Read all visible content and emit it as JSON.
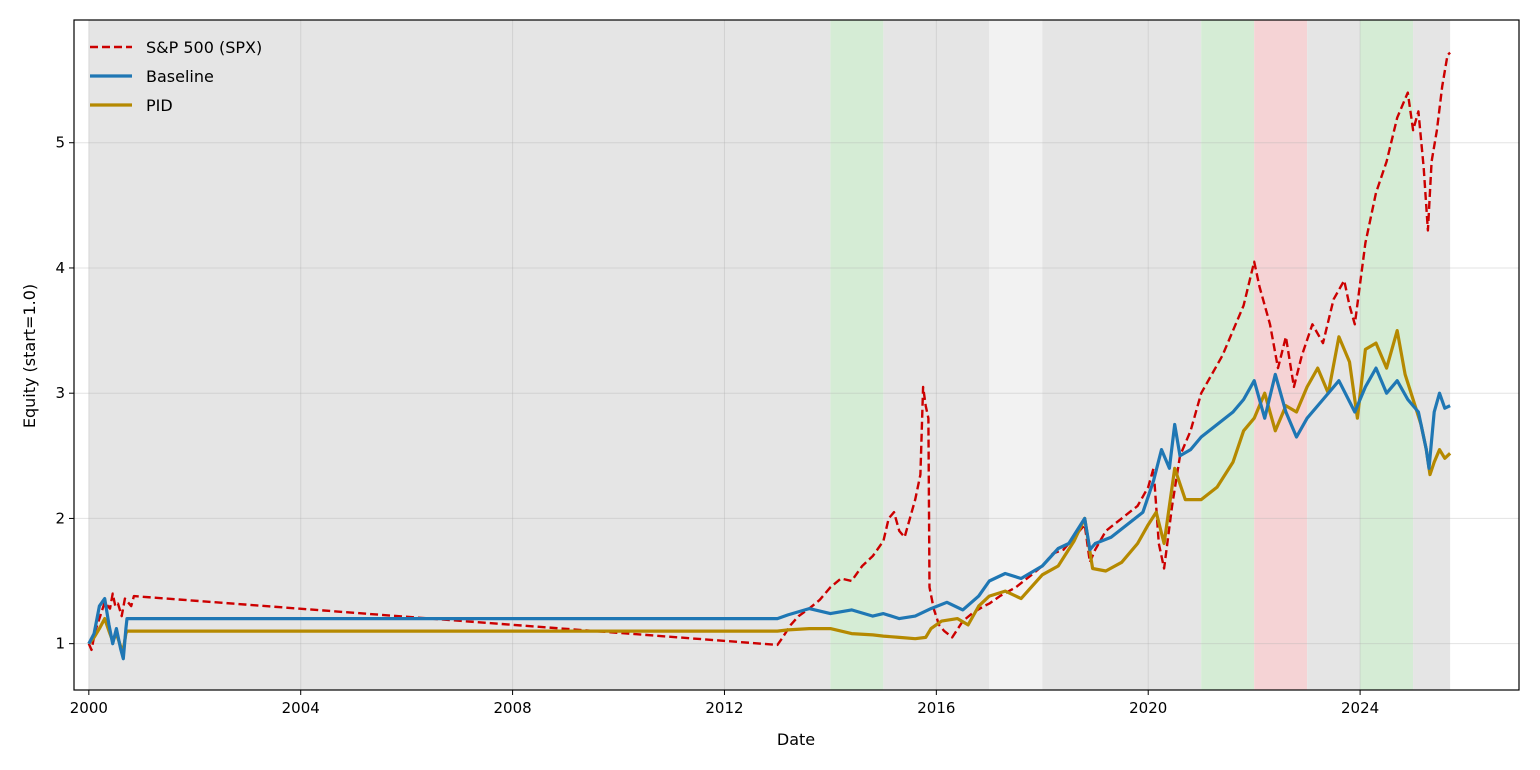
{
  "chart_data": {
    "type": "line",
    "title": "",
    "xlabel": "Date",
    "ylabel": "Equity (start=1.0)",
    "xlim": [
      1999.72,
      2027.0
    ],
    "ylim": [
      0.63,
      5.98
    ],
    "x_ticks": [
      2000,
      2004,
      2008,
      2012,
      2016,
      2020,
      2024
    ],
    "x_tick_labels": [
      "2000",
      "2004",
      "2008",
      "2012",
      "2016",
      "2020",
      "2024"
    ],
    "y_ticks": [
      1,
      2,
      3,
      4,
      5
    ],
    "y_tick_labels": [
      "1",
      "2",
      "3",
      "4",
      "5"
    ],
    "grid": true,
    "legend_position": "top-left",
    "regime_bands": [
      {
        "start": 2000.0,
        "end": 2014.0,
        "regime": "neutral",
        "color": "#e5e5e5"
      },
      {
        "start": 2014.0,
        "end": 2015.0,
        "regime": "bull",
        "color": "#d5ecd5"
      },
      {
        "start": 2015.0,
        "end": 2017.0,
        "regime": "neutral",
        "color": "#e5e5e5"
      },
      {
        "start": 2017.0,
        "end": 2018.0,
        "regime": "light",
        "color": "#f2f2f2"
      },
      {
        "start": 2018.0,
        "end": 2021.0,
        "regime": "neutral",
        "color": "#e5e5e5"
      },
      {
        "start": 2021.0,
        "end": 2022.0,
        "regime": "bull",
        "color": "#d5ecd5"
      },
      {
        "start": 2022.0,
        "end": 2023.0,
        "regime": "bear",
        "color": "#f5d3d5"
      },
      {
        "start": 2023.0,
        "end": 2024.0,
        "regime": "neutral",
        "color": "#e5e5e5"
      },
      {
        "start": 2024.0,
        "end": 2025.0,
        "regime": "bull",
        "color": "#d5ecd5"
      },
      {
        "start": 2025.0,
        "end": 2025.7,
        "regime": "neutral",
        "color": "#e5e5e5"
      }
    ],
    "series": [
      {
        "name": "S&P 500 (SPX)",
        "color": "#cc0000",
        "style": "dashed",
        "points": [
          [
            2000.0,
            1.0
          ],
          [
            2000.05,
            0.95
          ],
          [
            2000.12,
            1.1
          ],
          [
            2000.2,
            1.2
          ],
          [
            2000.3,
            1.33
          ],
          [
            2000.4,
            1.28
          ],
          [
            2000.45,
            1.4
          ],
          [
            2000.5,
            1.3
          ],
          [
            2000.55,
            1.32
          ],
          [
            2000.62,
            1.22
          ],
          [
            2000.68,
            1.36
          ],
          [
            2000.74,
            1.33
          ],
          [
            2000.8,
            1.3
          ],
          [
            2000.85,
            1.38
          ],
          [
            2013.0,
            0.99
          ],
          [
            2013.1,
            1.05
          ],
          [
            2013.25,
            1.15
          ],
          [
            2013.4,
            1.22
          ],
          [
            2013.6,
            1.28
          ],
          [
            2013.8,
            1.35
          ],
          [
            2014.0,
            1.45
          ],
          [
            2014.2,
            1.52
          ],
          [
            2014.4,
            1.5
          ],
          [
            2014.6,
            1.62
          ],
          [
            2014.8,
            1.7
          ],
          [
            2015.0,
            1.82
          ],
          [
            2015.1,
            2.0
          ],
          [
            2015.2,
            2.05
          ],
          [
            2015.3,
            1.9
          ],
          [
            2015.4,
            1.85
          ],
          [
            2015.5,
            2.0
          ],
          [
            2015.6,
            2.15
          ],
          [
            2015.7,
            2.35
          ],
          [
            2015.75,
            3.05
          ],
          [
            2015.8,
            2.9
          ],
          [
            2015.85,
            2.8
          ],
          [
            2015.87,
            1.45
          ],
          [
            2015.95,
            1.28
          ],
          [
            2016.05,
            1.15
          ],
          [
            2016.15,
            1.1
          ],
          [
            2016.3,
            1.05
          ],
          [
            2016.5,
            1.18
          ],
          [
            2016.7,
            1.25
          ],
          [
            2016.9,
            1.3
          ],
          [
            2017.0,
            1.32
          ],
          [
            2017.2,
            1.38
          ],
          [
            2017.5,
            1.45
          ],
          [
            2017.8,
            1.55
          ],
          [
            2018.0,
            1.62
          ],
          [
            2018.2,
            1.72
          ],
          [
            2018.4,
            1.75
          ],
          [
            2018.6,
            1.85
          ],
          [
            2018.8,
            1.95
          ],
          [
            2018.9,
            1.65
          ],
          [
            2019.0,
            1.75
          ],
          [
            2019.2,
            1.9
          ],
          [
            2019.5,
            2.0
          ],
          [
            2019.8,
            2.1
          ],
          [
            2020.0,
            2.25
          ],
          [
            2020.1,
            2.4
          ],
          [
            2020.2,
            1.8
          ],
          [
            2020.3,
            1.6
          ],
          [
            2020.45,
            2.1
          ],
          [
            2020.6,
            2.5
          ],
          [
            2020.8,
            2.7
          ],
          [
            2021.0,
            3.0
          ],
          [
            2021.2,
            3.15
          ],
          [
            2021.4,
            3.3
          ],
          [
            2021.6,
            3.5
          ],
          [
            2021.8,
            3.7
          ],
          [
            2022.0,
            4.05
          ],
          [
            2022.1,
            3.85
          ],
          [
            2022.3,
            3.55
          ],
          [
            2022.45,
            3.2
          ],
          [
            2022.6,
            3.45
          ],
          [
            2022.75,
            3.05
          ],
          [
            2022.9,
            3.3
          ],
          [
            2023.1,
            3.55
          ],
          [
            2023.3,
            3.4
          ],
          [
            2023.5,
            3.75
          ],
          [
            2023.7,
            3.9
          ],
          [
            2023.8,
            3.7
          ],
          [
            2023.9,
            3.55
          ],
          [
            2024.1,
            4.2
          ],
          [
            2024.3,
            4.6
          ],
          [
            2024.5,
            4.85
          ],
          [
            2024.7,
            5.2
          ],
          [
            2024.9,
            5.4
          ],
          [
            2025.0,
            5.1
          ],
          [
            2025.1,
            5.25
          ],
          [
            2025.2,
            4.8
          ],
          [
            2025.28,
            4.3
          ],
          [
            2025.35,
            4.85
          ],
          [
            2025.45,
            5.1
          ],
          [
            2025.55,
            5.45
          ],
          [
            2025.65,
            5.7
          ],
          [
            2025.7,
            5.72
          ]
        ]
      },
      {
        "name": "Baseline",
        "color": "#1f77b4",
        "style": "solid",
        "points": [
          [
            2000.0,
            1.0
          ],
          [
            2000.1,
            1.08
          ],
          [
            2000.2,
            1.3
          ],
          [
            2000.3,
            1.36
          ],
          [
            2000.38,
            1.15
          ],
          [
            2000.45,
            1.0
          ],
          [
            2000.52,
            1.12
          ],
          [
            2000.6,
            0.96
          ],
          [
            2000.65,
            0.88
          ],
          [
            2000.7,
            1.12
          ],
          [
            2000.72,
            1.2
          ],
          [
            2013.0,
            1.2
          ],
          [
            2013.2,
            1.23
          ],
          [
            2013.6,
            1.28
          ],
          [
            2014.0,
            1.24
          ],
          [
            2014.4,
            1.27
          ],
          [
            2014.8,
            1.22
          ],
          [
            2015.0,
            1.24
          ],
          [
            2015.3,
            1.2
          ],
          [
            2015.6,
            1.22
          ],
          [
            2015.9,
            1.28
          ],
          [
            2016.2,
            1.33
          ],
          [
            2016.5,
            1.27
          ],
          [
            2016.8,
            1.38
          ],
          [
            2017.0,
            1.5
          ],
          [
            2017.3,
            1.56
          ],
          [
            2017.6,
            1.52
          ],
          [
            2018.0,
            1.62
          ],
          [
            2018.3,
            1.76
          ],
          [
            2018.5,
            1.8
          ],
          [
            2018.8,
            2.0
          ],
          [
            2018.9,
            1.75
          ],
          [
            2019.0,
            1.8
          ],
          [
            2019.3,
            1.85
          ],
          [
            2019.6,
            1.95
          ],
          [
            2019.9,
            2.05
          ],
          [
            2020.1,
            2.3
          ],
          [
            2020.25,
            2.55
          ],
          [
            2020.4,
            2.4
          ],
          [
            2020.5,
            2.75
          ],
          [
            2020.6,
            2.5
          ],
          [
            2020.8,
            2.55
          ],
          [
            2021.0,
            2.65
          ],
          [
            2021.3,
            2.75
          ],
          [
            2021.6,
            2.85
          ],
          [
            2021.8,
            2.95
          ],
          [
            2022.0,
            3.1
          ],
          [
            2022.2,
            2.8
          ],
          [
            2022.4,
            3.15
          ],
          [
            2022.6,
            2.85
          ],
          [
            2022.8,
            2.65
          ],
          [
            2023.0,
            2.8
          ],
          [
            2023.3,
            2.95
          ],
          [
            2023.6,
            3.1
          ],
          [
            2023.9,
            2.85
          ],
          [
            2024.1,
            3.05
          ],
          [
            2024.3,
            3.2
          ],
          [
            2024.5,
            3.0
          ],
          [
            2024.7,
            3.1
          ],
          [
            2024.9,
            2.95
          ],
          [
            2025.1,
            2.85
          ],
          [
            2025.25,
            2.55
          ],
          [
            2025.3,
            2.4
          ],
          [
            2025.4,
            2.85
          ],
          [
            2025.5,
            3.0
          ],
          [
            2025.6,
            2.88
          ],
          [
            2025.7,
            2.9
          ]
        ]
      },
      {
        "name": "PID",
        "color": "#b58900",
        "style": "solid",
        "points": [
          [
            2000.0,
            1.0
          ],
          [
            2000.1,
            1.05
          ],
          [
            2000.2,
            1.12
          ],
          [
            2000.3,
            1.2
          ],
          [
            2000.38,
            1.1
          ],
          [
            2000.45,
            1.02
          ],
          [
            2000.52,
            1.08
          ],
          [
            2000.6,
            0.98
          ],
          [
            2000.65,
            0.95
          ],
          [
            2000.7,
            1.08
          ],
          [
            2000.72,
            1.1
          ],
          [
            2013.0,
            1.1
          ],
          [
            2013.2,
            1.11
          ],
          [
            2013.6,
            1.12
          ],
          [
            2014.0,
            1.12
          ],
          [
            2014.4,
            1.08
          ],
          [
            2014.8,
            1.07
          ],
          [
            2015.0,
            1.06
          ],
          [
            2015.3,
            1.05
          ],
          [
            2015.6,
            1.04
          ],
          [
            2015.8,
            1.05
          ],
          [
            2015.9,
            1.12
          ],
          [
            2016.1,
            1.18
          ],
          [
            2016.4,
            1.2
          ],
          [
            2016.6,
            1.15
          ],
          [
            2016.8,
            1.3
          ],
          [
            2017.0,
            1.38
          ],
          [
            2017.3,
            1.42
          ],
          [
            2017.6,
            1.36
          ],
          [
            2018.0,
            1.55
          ],
          [
            2018.3,
            1.62
          ],
          [
            2018.6,
            1.82
          ],
          [
            2018.8,
            2.0
          ],
          [
            2018.95,
            1.6
          ],
          [
            2019.2,
            1.58
          ],
          [
            2019.5,
            1.65
          ],
          [
            2019.8,
            1.8
          ],
          [
            2020.0,
            1.95
          ],
          [
            2020.15,
            2.05
          ],
          [
            2020.3,
            1.8
          ],
          [
            2020.5,
            2.4
          ],
          [
            2020.7,
            2.15
          ],
          [
            2021.0,
            2.15
          ],
          [
            2021.3,
            2.25
          ],
          [
            2021.6,
            2.45
          ],
          [
            2021.8,
            2.7
          ],
          [
            2022.0,
            2.8
          ],
          [
            2022.2,
            3.0
          ],
          [
            2022.4,
            2.7
          ],
          [
            2022.6,
            2.9
          ],
          [
            2022.8,
            2.85
          ],
          [
            2023.0,
            3.05
          ],
          [
            2023.2,
            3.2
          ],
          [
            2023.4,
            3.0
          ],
          [
            2023.6,
            3.45
          ],
          [
            2023.8,
            3.25
          ],
          [
            2023.95,
            2.8
          ],
          [
            2024.1,
            3.35
          ],
          [
            2024.3,
            3.4
          ],
          [
            2024.5,
            3.2
          ],
          [
            2024.7,
            3.5
          ],
          [
            2024.85,
            3.15
          ],
          [
            2025.0,
            2.95
          ],
          [
            2025.15,
            2.75
          ],
          [
            2025.25,
            2.55
          ],
          [
            2025.32,
            2.35
          ],
          [
            2025.4,
            2.45
          ],
          [
            2025.5,
            2.55
          ],
          [
            2025.6,
            2.48
          ],
          [
            2025.7,
            2.52
          ]
        ]
      }
    ]
  }
}
